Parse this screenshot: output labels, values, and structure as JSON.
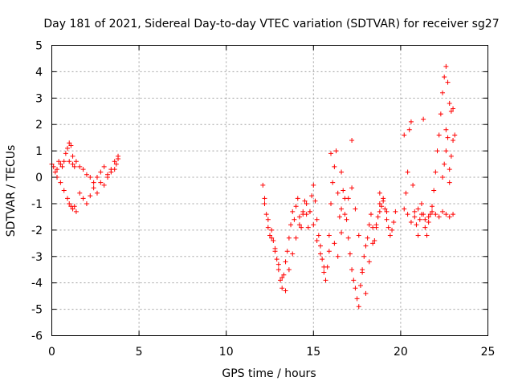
{
  "chart_data": {
    "type": "scatter",
    "title": "Day 181 of 2021, Sidereal Day-to-day VTEC variation (SDTVAR) for receiver sg27",
    "xlabel": "GPS time / hours",
    "ylabel": "SDTVAR / TECUs",
    "xlim": [
      0,
      25
    ],
    "ylim": [
      -6,
      5
    ],
    "xticks": [
      "0",
      "5",
      "10",
      "15",
      "20",
      "25"
    ],
    "yticks": [
      "-6",
      "-5",
      "-4",
      "-3",
      "-2",
      "-1",
      "0",
      "1",
      "2",
      "3",
      "4",
      "5"
    ],
    "grid": true,
    "marker": "plus",
    "color": "#ff0000",
    "series": [
      {
        "name": "sg27",
        "x": [
          0.0,
          0.1,
          0.2,
          0.3,
          0.4,
          0.5,
          0.6,
          0.7,
          0.8,
          0.9,
          1.0,
          1.1,
          1.2,
          1.3,
          0.3,
          0.5,
          0.7,
          0.9,
          1.0,
          1.1,
          1.2,
          1.3,
          1.4,
          1.0,
          1.2,
          1.4,
          1.6,
          1.8,
          2.0,
          2.2,
          2.4,
          2.6,
          2.8,
          3.0,
          3.2,
          3.4,
          3.6,
          3.8,
          1.6,
          1.8,
          2.0,
          2.2,
          2.4,
          2.6,
          2.8,
          3.0,
          3.2,
          3.4,
          3.6,
          3.7,
          3.8,
          12.1,
          12.2,
          12.3,
          12.4,
          12.5,
          12.6,
          12.7,
          12.8,
          12.9,
          13.0,
          13.1,
          13.2,
          13.3,
          13.4,
          13.5,
          13.6,
          13.7,
          13.8,
          13.9,
          14.0,
          14.1,
          14.2,
          14.3,
          14.4,
          14.5,
          14.6,
          14.7,
          14.8,
          14.9,
          15.0,
          15.1,
          15.2,
          15.3,
          15.4,
          15.5,
          15.6,
          15.7,
          15.8,
          15.9,
          12.2,
          12.4,
          12.6,
          12.8,
          13.0,
          13.2,
          13.4,
          13.6,
          13.8,
          14.0,
          14.2,
          14.4,
          14.6,
          14.8,
          15.0,
          15.2,
          15.4,
          15.6,
          15.9,
          16.0,
          16.1,
          16.2,
          16.3,
          16.4,
          16.5,
          16.6,
          16.7,
          16.8,
          16.9,
          17.0,
          17.1,
          17.2,
          17.3,
          17.4,
          17.5,
          17.6,
          17.7,
          17.8,
          17.9,
          18.0,
          18.1,
          18.2,
          18.3,
          18.4,
          18.5,
          18.6,
          18.7,
          18.8,
          18.9,
          19.0,
          19.1,
          19.2,
          19.3,
          19.4,
          19.5,
          19.6,
          19.7,
          16.2,
          16.4,
          16.6,
          16.8,
          17.0,
          17.2,
          17.4,
          17.6,
          17.8,
          18.0,
          18.2,
          18.4,
          18.6,
          18.8,
          19.0,
          19.2,
          20.2,
          20.3,
          20.4,
          20.5,
          20.6,
          20.7,
          20.8,
          20.9,
          21.0,
          21.1,
          21.2,
          21.3,
          21.4,
          21.5,
          21.6,
          21.7,
          21.8,
          21.9,
          22.0,
          22.1,
          22.2,
          22.3,
          22.4,
          22.5,
          22.6,
          22.7,
          22.8,
          22.9,
          23.0,
          20.4,
          20.6,
          20.8,
          21.0,
          21.2,
          21.4,
          21.6,
          21.8,
          22.0,
          22.2,
          22.4,
          22.6,
          22.8,
          23.0,
          22.4,
          22.5,
          22.6,
          22.7,
          22.8,
          22.9,
          23.0,
          23.1,
          16.0,
          16.6,
          17.2,
          18.8,
          20.2,
          21.3,
          22.6,
          22.8
        ],
        "y": [
          0.5,
          0.4,
          0.2,
          0.3,
          0.6,
          0.5,
          0.4,
          0.6,
          0.9,
          1.1,
          1.3,
          1.2,
          0.8,
          0.4,
          0.0,
          -0.2,
          -0.5,
          -0.8,
          -1.0,
          -1.1,
          -1.2,
          -1.1,
          -1.3,
          0.6,
          0.5,
          0.6,
          0.4,
          0.3,
          0.1,
          0.0,
          -0.2,
          0.0,
          0.2,
          0.4,
          0.1,
          0.3,
          0.6,
          0.8,
          -0.6,
          -0.8,
          -1.0,
          -0.7,
          -0.4,
          -0.6,
          -0.2,
          -0.3,
          0.0,
          0.2,
          0.3,
          0.5,
          0.7,
          -0.3,
          -0.8,
          -1.4,
          -1.9,
          -2.2,
          -2.0,
          -2.4,
          -2.7,
          -3.1,
          -3.5,
          -3.9,
          -4.2,
          -3.7,
          -3.2,
          -2.8,
          -2.3,
          -1.8,
          -1.3,
          -1.6,
          -1.1,
          -0.8,
          -1.5,
          -1.9,
          -1.3,
          -0.9,
          -1.4,
          -1.9,
          -1.3,
          -0.7,
          -0.3,
          -0.9,
          -1.6,
          -2.2,
          -2.6,
          -3.1,
          -3.6,
          -3.9,
          -3.4,
          -2.8,
          -1.0,
          -1.6,
          -2.3,
          -2.8,
          -3.3,
          -3.8,
          -4.3,
          -3.5,
          -2.9,
          -2.3,
          -1.8,
          -1.4,
          -1.0,
          -1.3,
          -1.8,
          -2.4,
          -2.9,
          -3.4,
          -2.2,
          -1.0,
          -0.2,
          0.4,
          1.0,
          -0.6,
          -1.5,
          -1.2,
          -0.5,
          -0.8,
          -1.6,
          -2.3,
          -2.9,
          -3.5,
          -3.9,
          -4.2,
          -4.6,
          -4.9,
          -4.1,
          -3.5,
          -3.0,
          -2.6,
          -2.3,
          -1.8,
          -1.4,
          -1.9,
          -2.4,
          -1.9,
          -1.5,
          -1.3,
          -1.1,
          -0.9,
          -1.2,
          -1.6,
          -1.9,
          -2.2,
          -2.0,
          -1.7,
          -1.3,
          -2.5,
          -3.0,
          -2.1,
          -1.4,
          -0.8,
          -0.4,
          -1.2,
          -2.2,
          -3.6,
          -4.4,
          -3.2,
          -2.5,
          -1.8,
          -1.0,
          -0.8,
          -1.3,
          -1.2,
          -0.6,
          0.2,
          1.8,
          2.1,
          -0.3,
          -1.3,
          -1.8,
          -2.2,
          -1.6,
          -1.0,
          -1.4,
          -1.9,
          -2.2,
          -1.7,
          -1.4,
          -1.1,
          -0.5,
          0.2,
          1.0,
          1.6,
          2.4,
          3.2,
          3.8,
          4.2,
          3.6,
          2.8,
          2.5,
          2.6,
          -1.4,
          -1.7,
          -1.5,
          -1.2,
          -1.4,
          -1.6,
          -1.5,
          -1.3,
          -1.4,
          -1.5,
          -1.3,
          -1.4,
          -1.5,
          -1.4,
          0.0,
          0.5,
          1.0,
          1.5,
          -0.2,
          0.8,
          1.4,
          1.6,
          0.9,
          0.2,
          1.4,
          -0.6,
          1.6,
          2.2,
          1.8,
          0.3
        ]
      }
    ]
  }
}
